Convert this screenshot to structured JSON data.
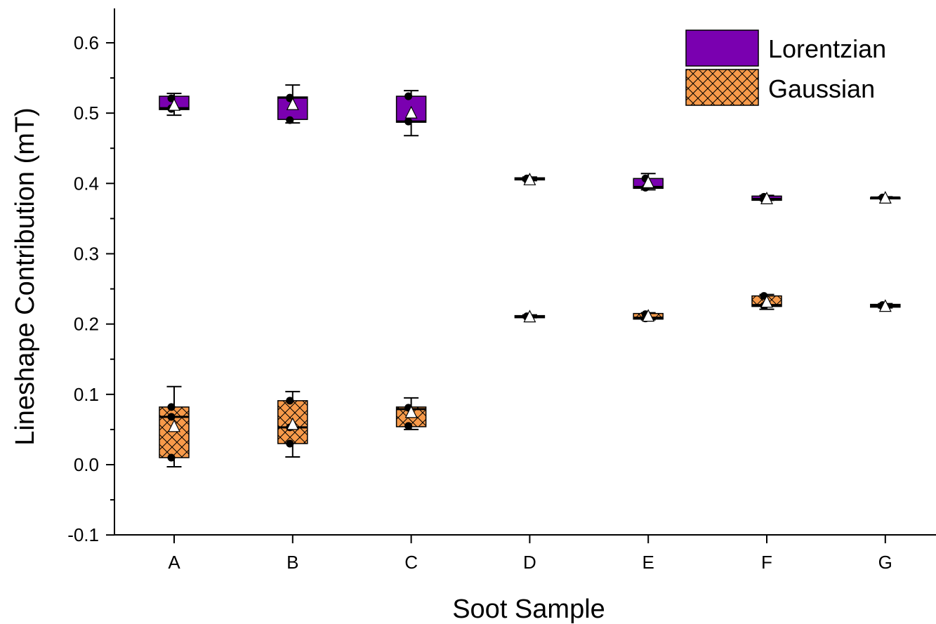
{
  "chart_data": {
    "type": "box",
    "xlabel": "Soot Sample",
    "ylabel": "Lineshape Contribution (mT)",
    "categories": [
      "A",
      "B",
      "C",
      "D",
      "E",
      "F",
      "G"
    ],
    "ylim": [
      -0.1,
      0.65
    ],
    "yticks": [
      -0.1,
      0.0,
      0.1,
      0.2,
      0.3,
      0.4,
      0.5,
      0.6
    ],
    "ytick_labels": [
      "-0.1",
      "0.0",
      "0.1",
      "0.2",
      "0.3",
      "0.4",
      "0.5",
      "0.6"
    ],
    "grid": false,
    "legend": "top-right",
    "series": [
      {
        "name": "Lorentzian",
        "color": "#7a00b0",
        "pattern": "solid",
        "boxes": [
          {
            "category": "A",
            "whisker_low": 0.497,
            "q1": 0.505,
            "median": 0.507,
            "q3": 0.524,
            "whisker_high": 0.528,
            "mean": 0.512,
            "points": [
              0.507,
              0.521,
              0.506
            ]
          },
          {
            "category": "B",
            "whisker_low": 0.486,
            "q1": 0.491,
            "median": 0.522,
            "q3": 0.523,
            "whisker_high": 0.54,
            "mean": 0.513,
            "points": [
              0.49,
              0.521,
              0.522
            ]
          },
          {
            "category": "C",
            "whisker_low": 0.468,
            "q1": 0.487,
            "median": 0.488,
            "q3": 0.524,
            "whisker_high": 0.532,
            "mean": 0.501,
            "points": [
              0.488,
              0.524
            ]
          },
          {
            "category": "D",
            "whisker_low": 0.404,
            "q1": 0.405,
            "median": 0.406,
            "q3": 0.408,
            "whisker_high": 0.409,
            "mean": 0.406,
            "points": [
              0.405,
              0.407
            ]
          },
          {
            "category": "E",
            "whisker_low": 0.391,
            "q1": 0.393,
            "median": 0.395,
            "q3": 0.407,
            "whisker_high": 0.414,
            "mean": 0.402,
            "points": [
              0.394,
              0.407
            ]
          },
          {
            "category": "F",
            "whisker_low": 0.376,
            "q1": 0.376,
            "median": 0.378,
            "q3": 0.382,
            "whisker_high": 0.383,
            "mean": 0.379,
            "points": [
              0.377,
              0.381
            ]
          },
          {
            "category": "G",
            "whisker_low": 0.379,
            "q1": 0.379,
            "median": 0.38,
            "q3": 0.38,
            "whisker_high": 0.381,
            "mean": 0.38,
            "points": [
              0.38
            ]
          }
        ]
      },
      {
        "name": "Gaussian",
        "color": "#f79a4a",
        "pattern": "crosshatch",
        "boxes": [
          {
            "category": "A",
            "whisker_low": -0.003,
            "q1": 0.01,
            "median": 0.068,
            "q3": 0.082,
            "whisker_high": 0.111,
            "mean": 0.055,
            "points": [
              0.01,
              0.068,
              0.082
            ]
          },
          {
            "category": "B",
            "whisker_low": 0.011,
            "q1": 0.03,
            "median": 0.053,
            "q3": 0.091,
            "whisker_high": 0.104,
            "mean": 0.058,
            "points": [
              0.03,
              0.053,
              0.091
            ]
          },
          {
            "category": "C",
            "whisker_low": 0.05,
            "q1": 0.054,
            "median": 0.079,
            "q3": 0.082,
            "whisker_high": 0.095,
            "mean": 0.075,
            "points": [
              0.055,
              0.081
            ]
          },
          {
            "category": "D",
            "whisker_low": 0.209,
            "q1": 0.209,
            "median": 0.21,
            "q3": 0.212,
            "whisker_high": 0.213,
            "mean": 0.211,
            "points": [
              0.21,
              0.211
            ]
          },
          {
            "category": "E",
            "whisker_low": 0.206,
            "q1": 0.207,
            "median": 0.209,
            "q3": 0.215,
            "whisker_high": 0.216,
            "mean": 0.212,
            "points": [
              0.208,
              0.214
            ]
          },
          {
            "category": "F",
            "whisker_low": 0.221,
            "q1": 0.225,
            "median": 0.227,
            "q3": 0.24,
            "whisker_high": 0.242,
            "mean": 0.232,
            "points": [
              0.226,
              0.24
            ]
          },
          {
            "category": "G",
            "whisker_low": 0.223,
            "q1": 0.224,
            "median": 0.226,
            "q3": 0.228,
            "whisker_high": 0.229,
            "mean": 0.226,
            "points": [
              0.225,
              0.227
            ]
          }
        ]
      }
    ]
  }
}
